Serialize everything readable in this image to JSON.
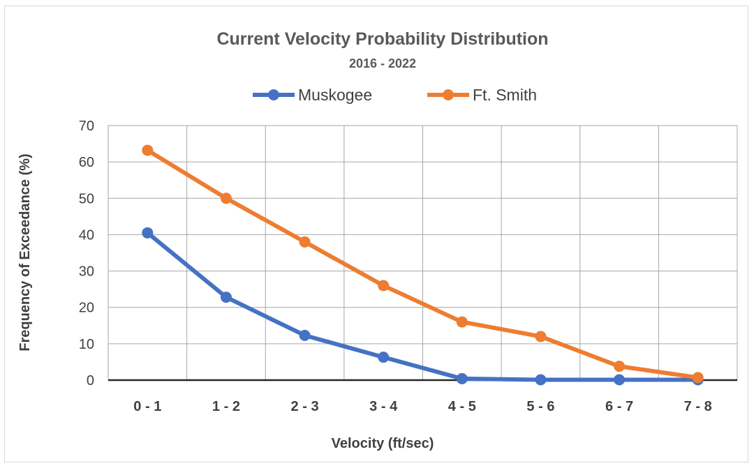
{
  "chart_data": {
    "type": "line",
    "title": "Current Velocity Probability Distribution",
    "subtitle": "2016 - 2022",
    "xlabel": "Velocity (ft/sec)",
    "ylabel": "Frequency of Exceedance (%)",
    "categories": [
      "0 - 1",
      "1 - 2",
      "2 - 3",
      "3 - 4",
      "4 - 5",
      "5 - 6",
      "6 - 7",
      "7 - 8"
    ],
    "ylim": [
      0,
      70
    ],
    "yticks": [
      0,
      10,
      20,
      30,
      40,
      50,
      60,
      70
    ],
    "grid": true,
    "legend_position": "top",
    "series": [
      {
        "name": "Muskogee",
        "color": "#4472c4",
        "values": [
          40.5,
          22.8,
          12.3,
          6.3,
          0.4,
          0.1,
          0.1,
          0.1
        ]
      },
      {
        "name": "Ft. Smith",
        "color": "#ed7d31",
        "values": [
          63.2,
          50.0,
          38.0,
          26.0,
          16.0,
          12.0,
          3.8,
          0.7
        ]
      }
    ]
  }
}
